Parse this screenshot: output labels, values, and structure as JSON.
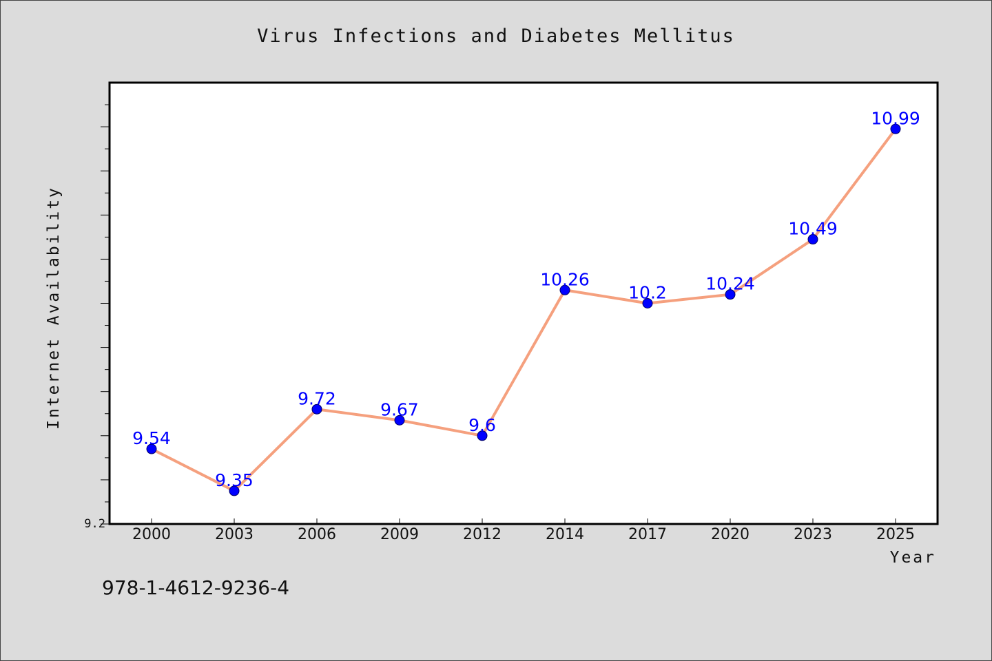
{
  "chart_data": {
    "type": "line",
    "title": "Virus Infections and Diabetes Mellitus",
    "xlabel": "Year",
    "ylabel": "Internet Availability",
    "categories": [
      "2000",
      "2003",
      "2006",
      "2009",
      "2012",
      "2014",
      "2017",
      "2020",
      "2023",
      "2025"
    ],
    "series": [
      {
        "values": [
          9.54,
          9.35,
          9.72,
          9.67,
          9.6,
          10.26,
          10.2,
          10.24,
          10.49,
          10.99
        ],
        "labels": [
          "9.54",
          "9.35",
          "9.72",
          "9.67",
          "9.6",
          "10.26",
          "10.2",
          "10.24",
          "10.49",
          "10.99"
        ]
      }
    ],
    "ylim": [
      9.2,
      11.2
    ],
    "ytick_labels": [
      "9.2"
    ],
    "grid": false,
    "colors": {
      "line": "#f5a07e",
      "marker": "#0000ff",
      "data_label": "#0000ff",
      "plot_background": "#ffffff",
      "page_background": "#dcdcdc"
    }
  },
  "footer": {
    "isbn": "978-1-4612-9236-4"
  }
}
